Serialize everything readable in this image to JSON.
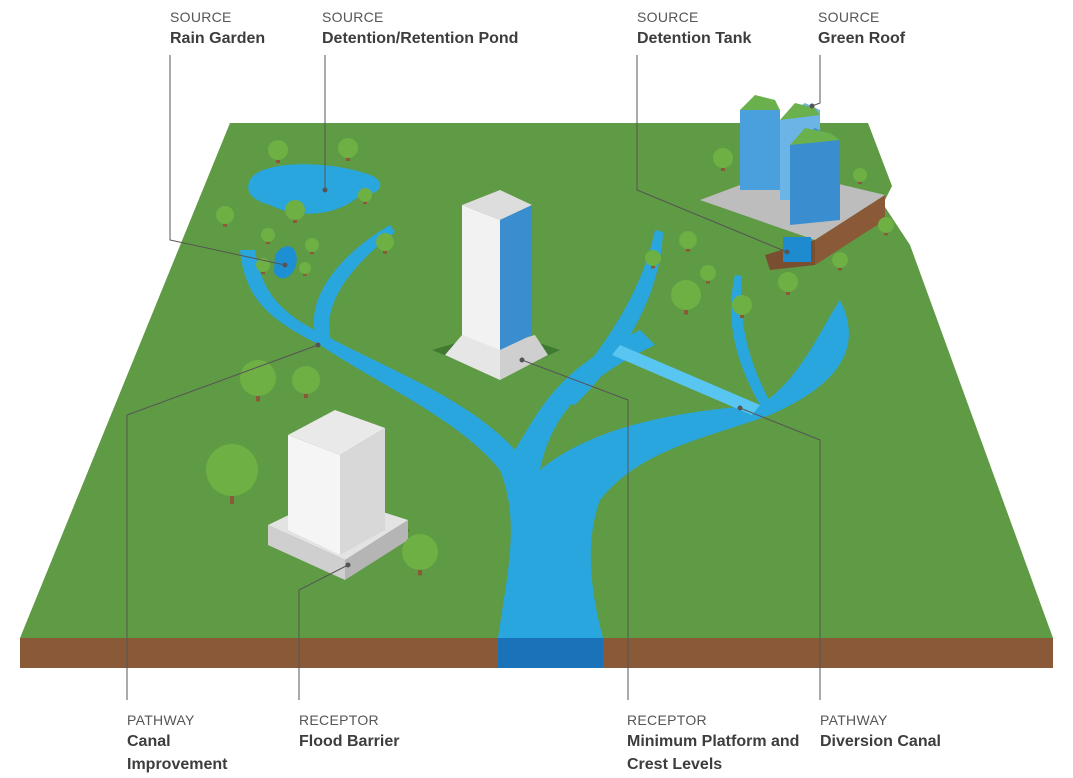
{
  "labels": [
    {
      "category": "SOURCE",
      "name": "Rain Garden"
    },
    {
      "category": "SOURCE",
      "name": "Detention/Retention Pond"
    },
    {
      "category": "SOURCE",
      "name": "Detention Tank"
    },
    {
      "category": "SOURCE",
      "name": "Green Roof"
    },
    {
      "category": "PATHWAY",
      "name": "Canal Improvement"
    },
    {
      "category": "RECEPTOR",
      "name": "Flood Barrier"
    },
    {
      "category": "RECEPTOR",
      "name": "Minimum Platform and Crest Levels"
    },
    {
      "category": "PATHWAY",
      "name": "Diversion Canal"
    }
  ]
}
